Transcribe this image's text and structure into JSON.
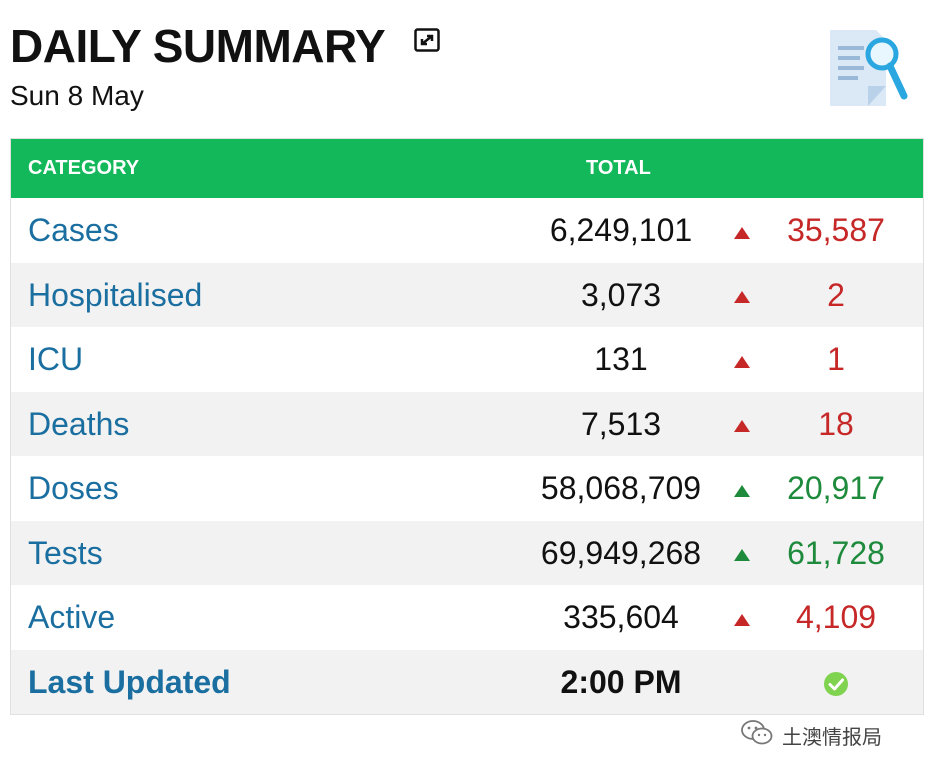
{
  "header": {
    "title": "DAILY SUMMARY",
    "date": "Sun 8 May"
  },
  "table": {
    "columns": [
      "CATEGORY",
      "TOTAL"
    ],
    "rows": [
      {
        "category": "Cases",
        "total": "6,249,101",
        "change": "35,587",
        "trend": "up",
        "color": "red"
      },
      {
        "category": "Hospitalised",
        "total": "3,073",
        "change": "2",
        "trend": "up",
        "color": "red"
      },
      {
        "category": "ICU",
        "total": "131",
        "change": "1",
        "trend": "up",
        "color": "red"
      },
      {
        "category": "Deaths",
        "total": "7,513",
        "change": "18",
        "trend": "up",
        "color": "red"
      },
      {
        "category": "Doses",
        "total": "58,068,709",
        "change": "20,917",
        "trend": "up",
        "color": "green"
      },
      {
        "category": "Tests",
        "total": "69,949,268",
        "change": "61,728",
        "trend": "up",
        "color": "green"
      },
      {
        "category": "Active",
        "total": "335,604",
        "change": "4,109",
        "trend": "up",
        "color": "red"
      }
    ],
    "last_updated": {
      "label": "Last Updated",
      "value": "2:00 PM"
    }
  },
  "watermark": {
    "text": "土澳情报局"
  },
  "colors": {
    "header_green": "#12b85a",
    "category_blue": "#1a6fa0",
    "increase_red": "#c62828",
    "increase_green": "#1e8a3c",
    "row_alt": "#f2f2f2"
  },
  "icons": [
    "expand-icon",
    "document-search-icon",
    "up-triangle-icon",
    "check-circle-icon",
    "wechat-icon"
  ]
}
